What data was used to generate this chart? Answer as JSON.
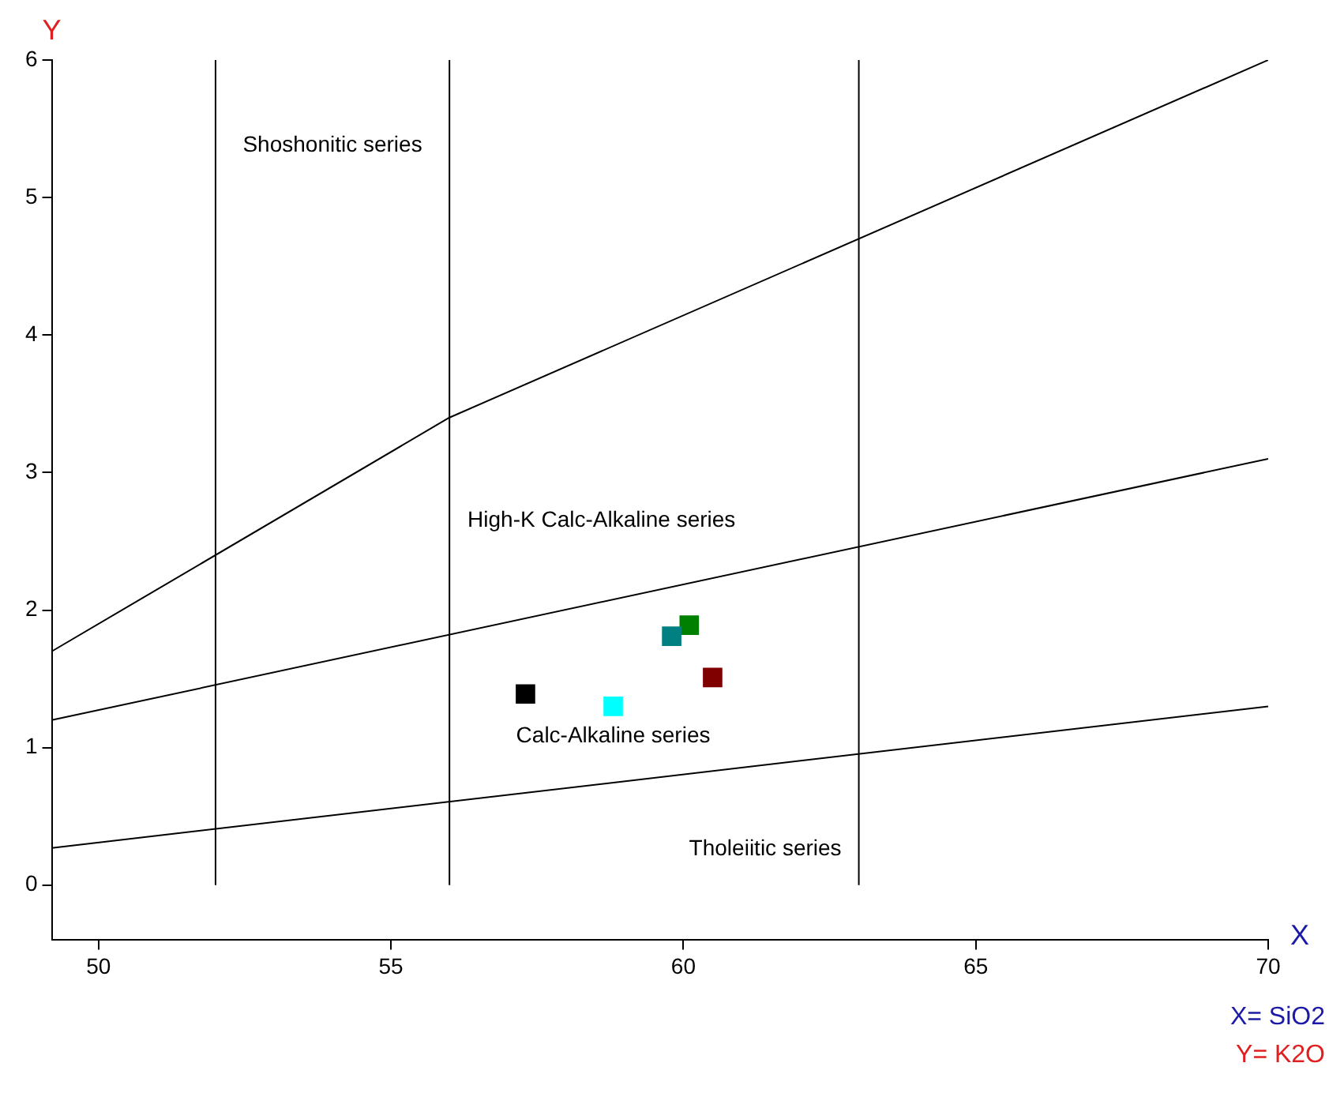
{
  "chart_data": {
    "type": "scatter",
    "xlabel": "X",
    "ylabel": "Y",
    "xlim": [
      49.2,
      70
    ],
    "ylim": [
      -0.4,
      6
    ],
    "xticks": [
      50,
      55,
      60,
      65,
      70
    ],
    "yticks": [
      0,
      1,
      2,
      3,
      4,
      5,
      6
    ],
    "grid": false,
    "legend": false,
    "series": [
      {
        "type": "line",
        "color": "#000000",
        "x": [
          49.2,
          70
        ],
        "values": [
          0.27,
          1.3
        ]
      },
      {
        "type": "line",
        "color": "#000000",
        "x": [
          49.2,
          70
        ],
        "values": [
          1.2,
          3.1
        ]
      },
      {
        "type": "line",
        "color": "#000000",
        "x": [
          49.2,
          56,
          70
        ],
        "values": [
          1.7,
          3.4,
          6
        ]
      },
      {
        "type": "line",
        "color": "#000000",
        "x": [
          52,
          52
        ],
        "values": [
          0,
          6
        ]
      },
      {
        "type": "line",
        "color": "#000000",
        "x": [
          56,
          56
        ],
        "values": [
          0,
          6
        ]
      },
      {
        "type": "line",
        "color": "#000000",
        "x": [
          63,
          63
        ],
        "values": [
          0,
          6
        ]
      },
      {
        "marker": "square",
        "color": "#000000",
        "x": [
          57.3
        ],
        "values": [
          1.39
        ]
      },
      {
        "marker": "square",
        "color": "#00ffff",
        "x": [
          58.8
        ],
        "values": [
          1.3
        ]
      },
      {
        "marker": "square",
        "color": "#008080",
        "x": [
          59.8
        ],
        "values": [
          1.81
        ]
      },
      {
        "marker": "square",
        "color": "#008000",
        "x": [
          60.1
        ],
        "values": [
          1.89
        ]
      },
      {
        "marker": "square",
        "color": "#800000",
        "x": [
          60.5
        ],
        "values": [
          1.51
        ]
      }
    ],
    "annotations": [
      "Shoshonitic series",
      "High-K Calc-Alkaline series",
      "Calc-Alkaline series",
      "Tholeiitic series",
      "X= SiO2",
      "Y= K2O"
    ]
  }
}
